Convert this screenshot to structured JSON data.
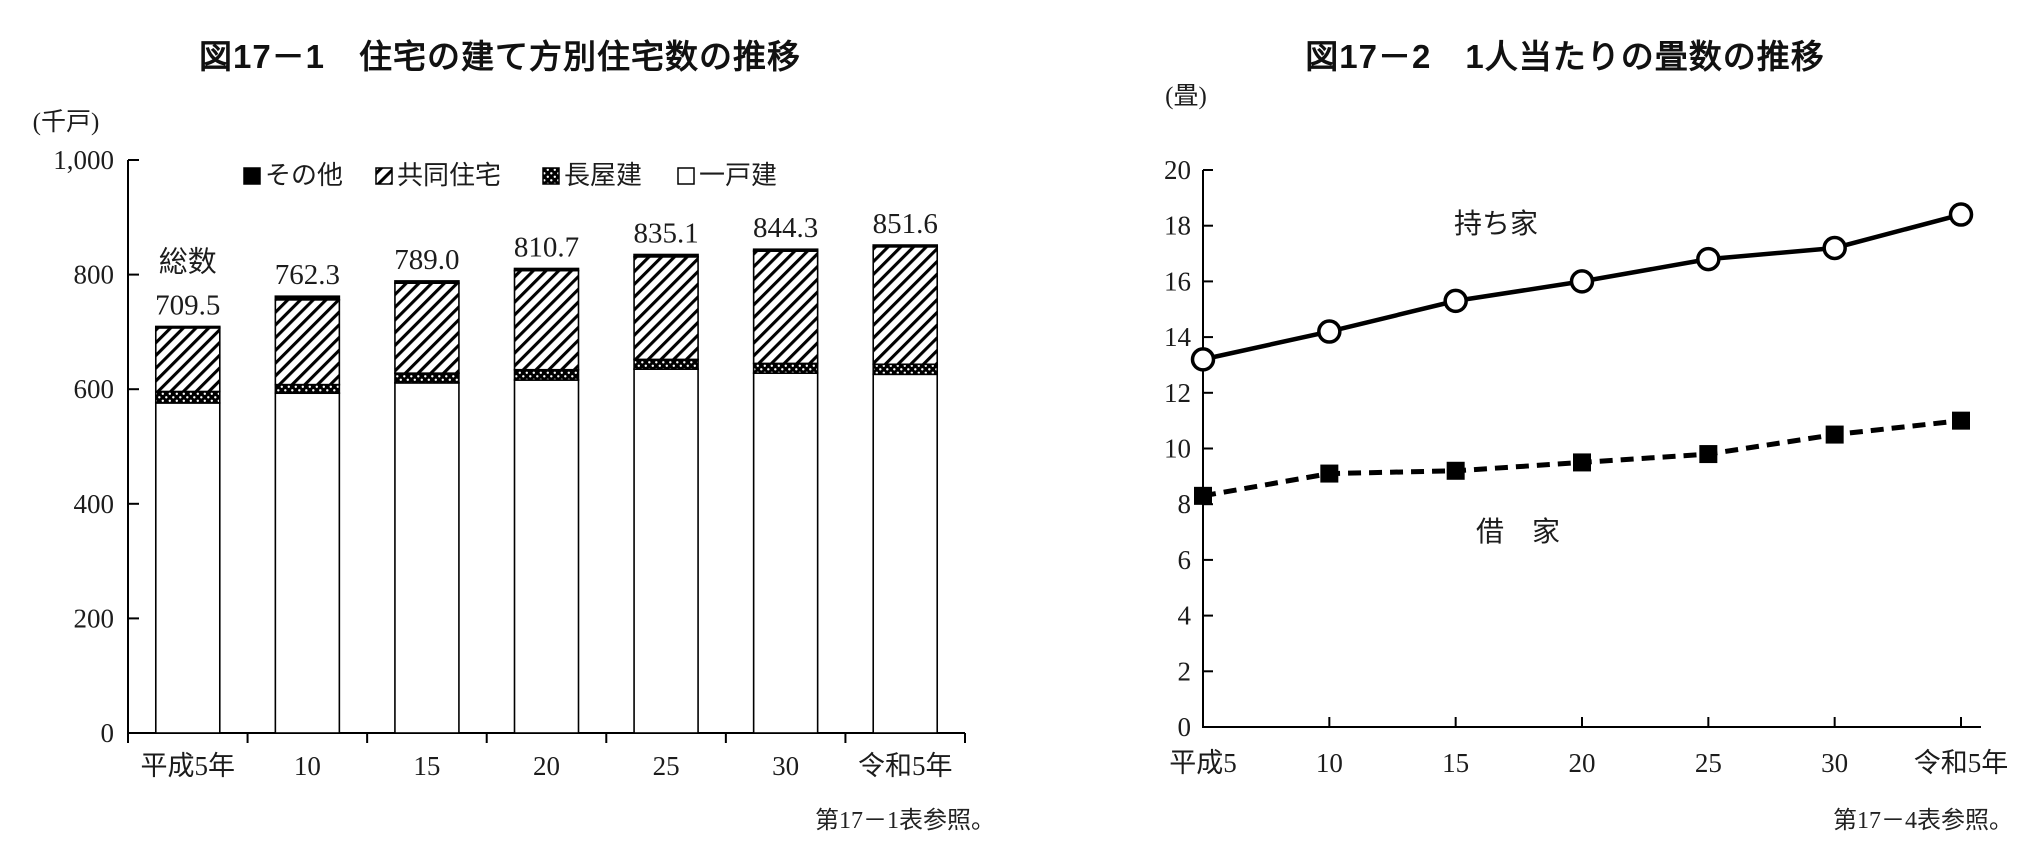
{
  "colors": {
    "ink": "#000000",
    "background": "#ffffff",
    "label": "#1c1c1c"
  },
  "chart_data": [
    {
      "id": "fig17-1",
      "type": "bar",
      "stacked": true,
      "title": "図17－1　住宅の建て方別住宅数の推移",
      "unit": "(千戸)",
      "footnote": "第17－1表参照。",
      "categories": [
        "平成5年",
        "10",
        "15",
        "20",
        "25",
        "30",
        "令和5年"
      ],
      "series": [
        {
          "name": "一戸建",
          "pattern": "plain",
          "values": [
            576,
            593,
            611,
            616,
            635,
            628,
            626
          ]
        },
        {
          "name": "長屋建",
          "pattern": "dots",
          "values": [
            20,
            15,
            17,
            18,
            17,
            17,
            17.5
          ]
        },
        {
          "name": "共同住宅",
          "pattern": "hatch",
          "values": [
            111,
            148,
            157,
            173,
            179,
            196,
            205
          ]
        },
        {
          "name": "その他",
          "pattern": "solid",
          "values": [
            2.5,
            6.3,
            4.0,
            3.7,
            4.1,
            3.3,
            3.1
          ]
        }
      ],
      "legend": [
        {
          "label": "その他",
          "pattern": "solid"
        },
        {
          "label": "共同住宅",
          "pattern": "hatch"
        },
        {
          "label": "長屋建",
          "pattern": "dots"
        },
        {
          "label": "一戸建",
          "pattern": "plain"
        }
      ],
      "totals": [
        709.5,
        762.3,
        789.0,
        810.7,
        835.1,
        844.3,
        851.6
      ],
      "total_prefix": "総数",
      "ylim": [
        0,
        1000
      ],
      "ytick_step": 200,
      "ytick_labels": [
        "0",
        "200",
        "400",
        "600",
        "800",
        "1,000"
      ],
      "grid": false,
      "legend_position": "top-inside"
    },
    {
      "id": "fig17-2",
      "type": "line",
      "title": "図17－2　1人当たりの畳数の推移",
      "unit": "(畳)",
      "footnote": "第17－4表参照。",
      "categories": [
        "平成5",
        "10",
        "15",
        "20",
        "25",
        "30",
        "令和5年"
      ],
      "series": [
        {
          "name": "持ち家",
          "annotation": "持ち家",
          "line": "solid",
          "marker": "circle-open",
          "values": [
            13.2,
            14.2,
            15.3,
            16.0,
            16.8,
            17.2,
            18.4
          ]
        },
        {
          "name": "借家",
          "annotation": "借　家",
          "line": "dashed",
          "marker": "square-filled",
          "values": [
            8.3,
            9.1,
            9.2,
            9.5,
            9.8,
            10.5,
            11.0
          ]
        }
      ],
      "ylim": [
        0,
        20
      ],
      "ytick_step": 2,
      "grid": false,
      "legend_position": "inline-annotations"
    }
  ]
}
